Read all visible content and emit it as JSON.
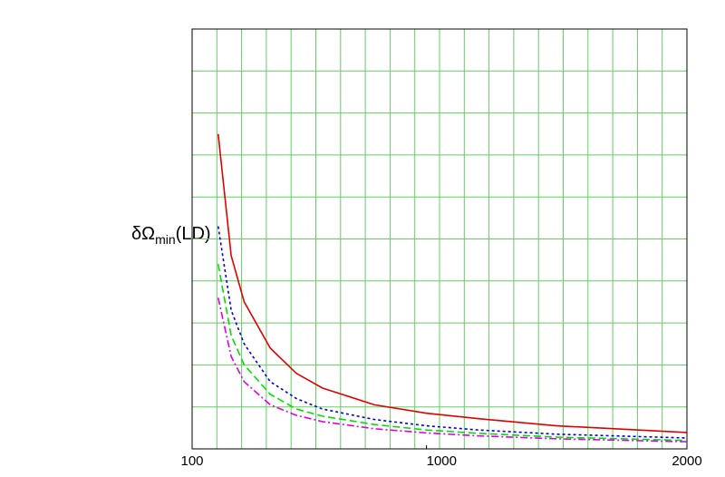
{
  "chart_data": {
    "type": "line",
    "y_label": {
      "main": "δΩ",
      "sub": "min",
      "tail": "(LD)"
    },
    "x": [
      200,
      250,
      300,
      400,
      500,
      600,
      800,
      1000,
      1200,
      1500,
      2000
    ],
    "series": [
      {
        "color": "#e00000",
        "dash": "none",
        "values": [
          7.5,
          4.6,
          3.5,
          2.4,
          1.8,
          1.45,
          1.05,
          0.85,
          0.72,
          0.55,
          0.39
        ]
      },
      {
        "color": "#0000e0",
        "dash": "3,3",
        "values": [
          5.3,
          3.3,
          2.5,
          1.6,
          1.2,
          0.95,
          0.7,
          0.55,
          0.45,
          0.35,
          0.26
        ]
      },
      {
        "color": "#00e000",
        "dash": "8,4",
        "values": [
          4.4,
          2.7,
          2.0,
          1.3,
          0.95,
          0.78,
          0.58,
          0.45,
          0.37,
          0.28,
          0.2
        ]
      },
      {
        "color": "#e000e0",
        "dash": "8,3,2,3",
        "values": [
          3.6,
          2.2,
          1.6,
          1.05,
          0.8,
          0.65,
          0.48,
          0.38,
          0.31,
          0.24,
          0.17
        ]
      }
    ],
    "xlim": [
      100,
      2000
    ],
    "xticks": [
      100,
      1000,
      2000
    ],
    "ylim": [
      0,
      10
    ],
    "grid": true,
    "grid_color": "#66cc66",
    "xgrid_intervals": 20,
    "ygrid_intervals": 10
  }
}
